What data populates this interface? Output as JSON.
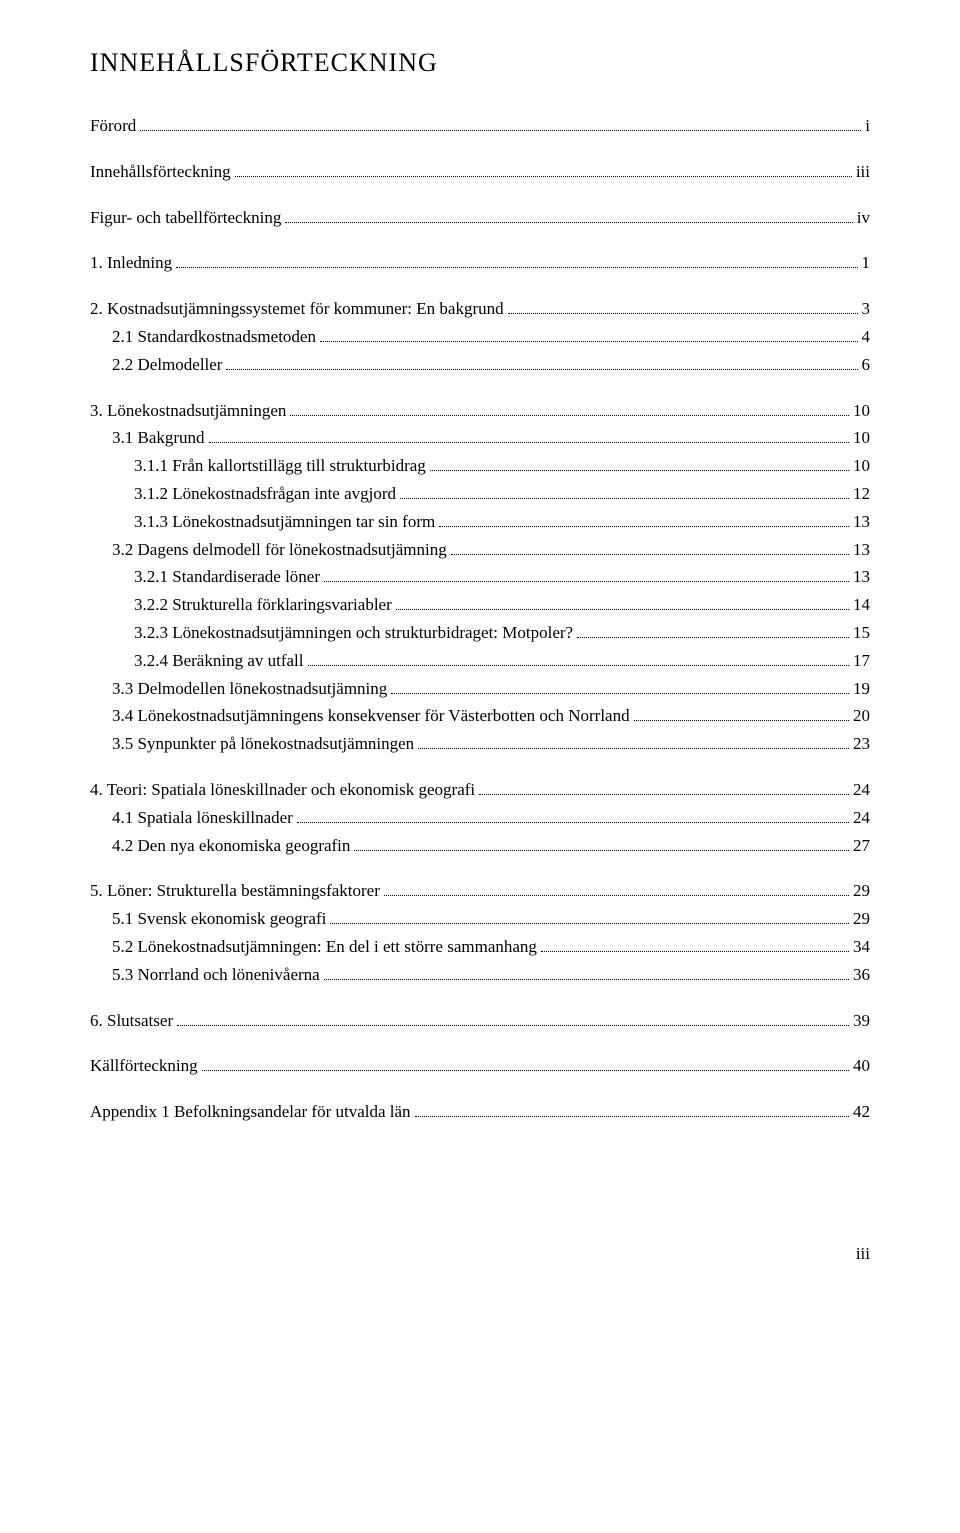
{
  "title": "INNEHÅLLSFÖRTECKNING",
  "page_number": "iii",
  "entries": [
    {
      "level": 0,
      "label": "Förord",
      "page": "i",
      "first": true
    },
    {
      "level": 0,
      "label": "Innehållsförteckning",
      "page": "iii"
    },
    {
      "level": 0,
      "label": "Figur- och tabellförteckning",
      "page": "iv"
    },
    {
      "level": 0,
      "label": "1.  Inledning",
      "page": "1"
    },
    {
      "level": 0,
      "label": "2.  Kostnadsutjämningssystemet för kommuner: En bakgrund",
      "page": "3"
    },
    {
      "level": 1,
      "label": "2.1 Standardkostnadsmetoden",
      "page": "4"
    },
    {
      "level": 1,
      "label": "2.2 Delmodeller",
      "page": "6"
    },
    {
      "level": 0,
      "label": "3.  Lönekostnadsutjämningen",
      "page": "10"
    },
    {
      "level": 1,
      "label": "3.1 Bakgrund",
      "page": "10"
    },
    {
      "level": 2,
      "label": "3.1.1 Från kallortstillägg till strukturbidrag",
      "page": "10"
    },
    {
      "level": 2,
      "label": "3.1.2 Lönekostnadsfrågan inte avgjord",
      "page": "12"
    },
    {
      "level": 2,
      "label": "3.1.3 Lönekostnadsutjämningen tar sin form",
      "page": "13"
    },
    {
      "level": 1,
      "label": "3.2 Dagens delmodell för lönekostnadsutjämning",
      "page": "13"
    },
    {
      "level": 2,
      "label": "3.2.1 Standardiserade löner",
      "page": "13"
    },
    {
      "level": 2,
      "label": "3.2.2 Strukturella förklaringsvariabler",
      "page": "14"
    },
    {
      "level": 2,
      "label": "3.2.3 Lönekostnadsutjämningen och strukturbidraget: Motpoler?",
      "page": "15"
    },
    {
      "level": 2,
      "label": "3.2.4 Beräkning av utfall",
      "page": "17"
    },
    {
      "level": 1,
      "label": "3.3 Delmodellen lönekostnadsutjämning",
      "page": "19"
    },
    {
      "level": 1,
      "label": "3.4 Lönekostnadsutjämningens konsekvenser för Västerbotten och Norrland",
      "page": "20"
    },
    {
      "level": 1,
      "label": "3.5 Synpunkter på lönekostnadsutjämningen",
      "page": "23"
    },
    {
      "level": 0,
      "label": "4.  Teori: Spatiala löneskillnader och ekonomisk geografi",
      "page": "24"
    },
    {
      "level": 1,
      "label": "4.1 Spatiala löneskillnader",
      "page": "24"
    },
    {
      "level": 1,
      "label": "4.2 Den nya ekonomiska geografin",
      "page": "27"
    },
    {
      "level": 0,
      "label": "5.  Löner: Strukturella bestämningsfaktorer",
      "page": "29"
    },
    {
      "level": 1,
      "label": "5.1 Svensk ekonomisk geografi",
      "page": "29"
    },
    {
      "level": 1,
      "label": "5.2 Lönekostnadsutjämningen: En del i ett större sammanhang",
      "page": "34"
    },
    {
      "level": 1,
      "label": "5.3 Norrland och lönenivåerna",
      "page": "36"
    },
    {
      "level": 0,
      "label": "6.  Slutsatser",
      "page": "39"
    },
    {
      "level": 0,
      "label": "Källförteckning",
      "page": "40"
    },
    {
      "level": 0,
      "label": "Appendix 1 Befolkningsandelar för utvalda län",
      "page": "42"
    }
  ]
}
